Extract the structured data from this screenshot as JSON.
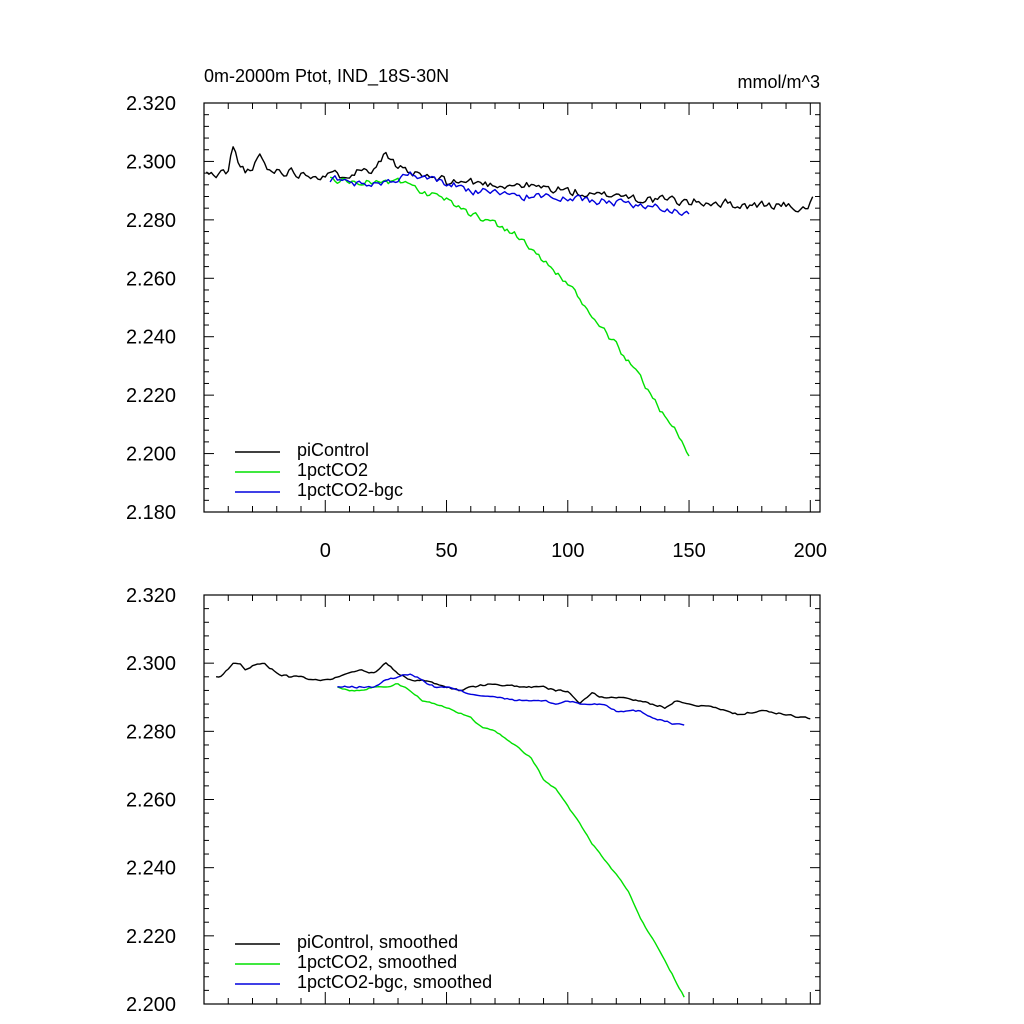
{
  "figure": {
    "title_left": "0m-2000m Ptot, IND_18S-30N",
    "title_right": "mmol/m^3"
  },
  "chart_data": [
    {
      "type": "line",
      "ylim": [
        2.18,
        2.32
      ],
      "xlim": [
        -50,
        204
      ],
      "yticks": [
        2.18,
        2.2,
        2.22,
        2.24,
        2.26,
        2.28,
        2.3,
        2.32
      ],
      "ytick_labels": [
        "2.180",
        "2.200",
        "2.220",
        "2.240",
        "2.260",
        "2.280",
        "2.300",
        "2.320"
      ],
      "xticks": [
        0,
        50,
        100,
        150,
        200
      ],
      "xtick_labels": [
        "0",
        "50",
        "100",
        "150",
        "200"
      ],
      "legend_position": "bottom-left",
      "series": [
        {
          "name": "piControl",
          "color": "#000000",
          "start": -49,
          "anchors": [
            [
              -49,
              2.296
            ],
            [
              -45,
              2.295
            ],
            [
              -40,
              2.297
            ],
            [
              -38,
              2.305
            ],
            [
              -35,
              2.298
            ],
            [
              -30,
              2.296
            ],
            [
              -27,
              2.303
            ],
            [
              -24,
              2.297
            ],
            [
              -20,
              2.297
            ],
            [
              -10,
              2.296
            ],
            [
              0,
              2.295
            ],
            [
              10,
              2.296
            ],
            [
              20,
              2.298
            ],
            [
              25,
              2.303
            ],
            [
              30,
              2.297
            ],
            [
              40,
              2.295
            ],
            [
              50,
              2.293
            ],
            [
              60,
              2.293
            ],
            [
              70,
              2.292
            ],
            [
              80,
              2.292
            ],
            [
              90,
              2.291
            ],
            [
              100,
              2.29
            ],
            [
              110,
              2.288
            ],
            [
              120,
              2.289
            ],
            [
              130,
              2.287
            ],
            [
              140,
              2.287
            ],
            [
              150,
              2.286
            ],
            [
              160,
              2.286
            ],
            [
              170,
              2.285
            ],
            [
              180,
              2.285
            ],
            [
              190,
              2.285
            ],
            [
              198,
              2.283
            ],
            [
              201,
              2.288
            ]
          ],
          "noise": 0.0022,
          "seed": 11
        },
        {
          "name": "1pctCO2",
          "color": "#00e000",
          "start": 2,
          "anchors": [
            [
              2,
              2.294
            ],
            [
              10,
              2.293
            ],
            [
              20,
              2.293
            ],
            [
              30,
              2.293
            ],
            [
              35,
              2.292
            ],
            [
              40,
              2.289
            ],
            [
              50,
              2.287
            ],
            [
              60,
              2.282
            ],
            [
              70,
              2.279
            ],
            [
              80,
              2.274
            ],
            [
              90,
              2.266
            ],
            [
              100,
              2.258
            ],
            [
              110,
              2.247
            ],
            [
              120,
              2.237
            ],
            [
              130,
              2.226
            ],
            [
              140,
              2.213
            ],
            [
              145,
              2.207
            ],
            [
              150,
              2.199
            ]
          ],
          "noise": 0.0015,
          "seed": 23
        },
        {
          "name": "1pctCO2-bgc",
          "color": "#0000dd",
          "start": 2,
          "anchors": [
            [
              2,
              2.294
            ],
            [
              10,
              2.293
            ],
            [
              20,
              2.292
            ],
            [
              30,
              2.294
            ],
            [
              35,
              2.296
            ],
            [
              40,
              2.294
            ],
            [
              50,
              2.293
            ],
            [
              60,
              2.29
            ],
            [
              70,
              2.289
            ],
            [
              80,
              2.288
            ],
            [
              90,
              2.288
            ],
            [
              100,
              2.287
            ],
            [
              110,
              2.287
            ],
            [
              120,
              2.286
            ],
            [
              130,
              2.285
            ],
            [
              140,
              2.284
            ],
            [
              150,
              2.282
            ]
          ],
          "noise": 0.0018,
          "seed": 37
        }
      ]
    },
    {
      "type": "line",
      "ylim": [
        2.2,
        2.32
      ],
      "xlim": [
        -50,
        204
      ],
      "yticks": [
        2.2,
        2.22,
        2.24,
        2.26,
        2.28,
        2.3,
        2.32
      ],
      "ytick_labels": [
        "2.200",
        "2.220",
        "2.240",
        "2.260",
        "2.280",
        "2.300",
        "2.320"
      ],
      "xticks": [
        0,
        50,
        100,
        150,
        200
      ],
      "xtick_labels": [],
      "legend_position": "bottom-left",
      "series": [
        {
          "name": "piControl, smoothed",
          "color": "#000000",
          "start": -45,
          "anchors": [
            [
              -45,
              2.296
            ],
            [
              -43,
              2.296
            ],
            [
              -38,
              2.3
            ],
            [
              -35,
              2.3
            ],
            [
              -33,
              2.298
            ],
            [
              -28,
              2.3
            ],
            [
              -25,
              2.3
            ],
            [
              -20,
              2.297
            ],
            [
              -15,
              2.296
            ],
            [
              -10,
              2.296
            ],
            [
              -5,
              2.295
            ],
            [
              0,
              2.295
            ],
            [
              5,
              2.296
            ],
            [
              10,
              2.297
            ],
            [
              15,
              2.298
            ],
            [
              20,
              2.297
            ],
            [
              25,
              2.3
            ],
            [
              30,
              2.297
            ],
            [
              35,
              2.295
            ],
            [
              40,
              2.295
            ],
            [
              45,
              2.294
            ],
            [
              50,
              2.293
            ],
            [
              55,
              2.292
            ],
            [
              60,
              2.293
            ],
            [
              70,
              2.294
            ],
            [
              80,
              2.293
            ],
            [
              90,
              2.293
            ],
            [
              95,
              2.292
            ],
            [
              100,
              2.292
            ],
            [
              105,
              2.288
            ],
            [
              110,
              2.291
            ],
            [
              115,
              2.29
            ],
            [
              120,
              2.29
            ],
            [
              130,
              2.289
            ],
            [
              135,
              2.288
            ],
            [
              140,
              2.287
            ],
            [
              145,
              2.289
            ],
            [
              150,
              2.288
            ],
            [
              160,
              2.287
            ],
            [
              170,
              2.285
            ],
            [
              180,
              2.286
            ],
            [
              190,
              2.285
            ],
            [
              196,
              2.284
            ],
            [
              200,
              2.284
            ]
          ],
          "noise": 0.0004,
          "seed": 5
        },
        {
          "name": "1pctCO2, smoothed",
          "color": "#00e000",
          "start": 5,
          "anchors": [
            [
              5,
              2.293
            ],
            [
              10,
              2.292
            ],
            [
              15,
              2.292
            ],
            [
              20,
              2.293
            ],
            [
              25,
              2.293
            ],
            [
              30,
              2.294
            ],
            [
              35,
              2.292
            ],
            [
              40,
              2.289
            ],
            [
              45,
              2.288
            ],
            [
              50,
              2.287
            ],
            [
              60,
              2.284
            ],
            [
              65,
              2.281
            ],
            [
              70,
              2.28
            ],
            [
              80,
              2.275
            ],
            [
              85,
              2.272
            ],
            [
              90,
              2.266
            ],
            [
              95,
              2.263
            ],
            [
              100,
              2.258
            ],
            [
              105,
              2.253
            ],
            [
              110,
              2.247
            ],
            [
              120,
              2.238
            ],
            [
              125,
              2.233
            ],
            [
              130,
              2.225
            ],
            [
              135,
              2.219
            ],
            [
              140,
              2.213
            ],
            [
              145,
              2.206
            ],
            [
              148,
              2.202
            ]
          ],
          "noise": 0.0003,
          "seed": 9
        },
        {
          "name": "1pctCO2-bgc, smoothed",
          "color": "#0000dd",
          "start": 5,
          "anchors": [
            [
              5,
              2.293
            ],
            [
              10,
              2.293
            ],
            [
              15,
              2.293
            ],
            [
              20,
              2.293
            ],
            [
              25,
              2.295
            ],
            [
              30,
              2.296
            ],
            [
              35,
              2.297
            ],
            [
              40,
              2.295
            ],
            [
              45,
              2.293
            ],
            [
              50,
              2.293
            ],
            [
              55,
              2.292
            ],
            [
              60,
              2.291
            ],
            [
              70,
              2.29
            ],
            [
              80,
              2.289
            ],
            [
              90,
              2.289
            ],
            [
              95,
              2.288
            ],
            [
              100,
              2.289
            ],
            [
              105,
              2.288
            ],
            [
              110,
              2.288
            ],
            [
              115,
              2.288
            ],
            [
              120,
              2.286
            ],
            [
              125,
              2.286
            ],
            [
              130,
              2.286
            ],
            [
              135,
              2.284
            ],
            [
              140,
              2.283
            ],
            [
              145,
              2.282
            ],
            [
              148,
              2.282
            ]
          ],
          "noise": 0.0004,
          "seed": 13
        }
      ]
    }
  ]
}
